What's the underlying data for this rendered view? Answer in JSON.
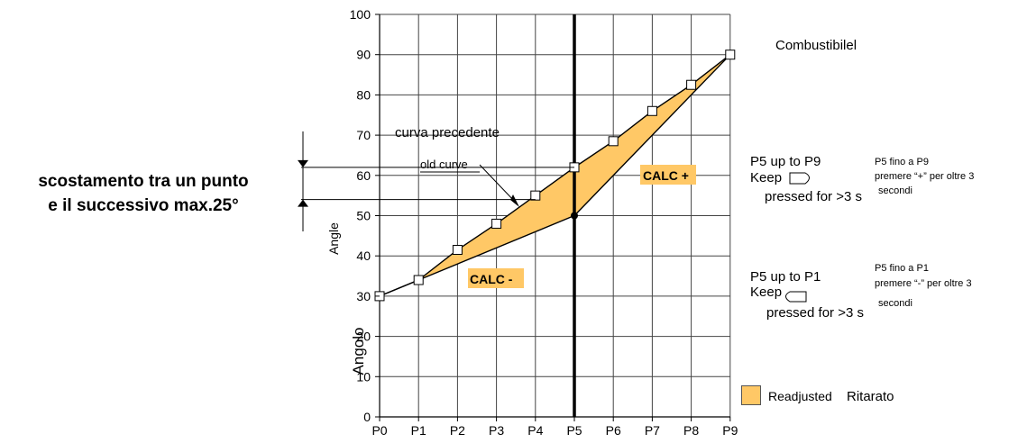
{
  "chart_data": {
    "type": "line",
    "categories": [
      "P0",
      "P1",
      "P2",
      "P3",
      "P4",
      "P5",
      "P6",
      "P7",
      "P8",
      "P9"
    ],
    "ylim": [
      0,
      100
    ],
    "yticks": [
      0,
      10,
      20,
      30,
      40,
      50,
      60,
      70,
      80,
      90,
      100
    ],
    "ylabel_en": "Angle",
    "ylabel_it": "Angolo",
    "grid": true,
    "series": [
      {
        "name": "Combustibilel",
        "values": [
          30,
          34,
          41.5,
          48,
          55,
          62,
          68.5,
          76,
          82.5,
          90
        ]
      },
      {
        "name": "old curve",
        "values": [
          30,
          34,
          null,
          null,
          null,
          50,
          null,
          null,
          null,
          90
        ]
      }
    ],
    "vertical_marker_category": "P5",
    "fill_color": "#ffc866",
    "annotations": {
      "curva_precedente": "curva precedente",
      "old_curve": "old curve",
      "calc_plus": "CALC +",
      "calc_minus": "CALC -"
    },
    "legend": {
      "label_en": "Readjusted",
      "label_it": "Ritarato",
      "placement": "bottom-right"
    }
  },
  "left_note": {
    "line1": "scostamento tra un punto",
    "line2": "e il successivo max.25°"
  },
  "right_notes": {
    "plus_en_1": "P5 up to P9",
    "plus_en_2": "Keep",
    "plus_en_3": "pressed for >3 s",
    "plus_it_1": "P5 fino a P9",
    "plus_it_2": "premere  “+”  per  oltre  3",
    "plus_it_3": "secondi",
    "minus_en_1": "P5 up to P1",
    "minus_en_2": "Keep",
    "minus_en_3": "pressed for >3 s",
    "minus_it_1": "P5 fino a P1",
    "minus_it_2": "premere  “-”  per  oltre  3",
    "minus_it_3": "secondi"
  }
}
